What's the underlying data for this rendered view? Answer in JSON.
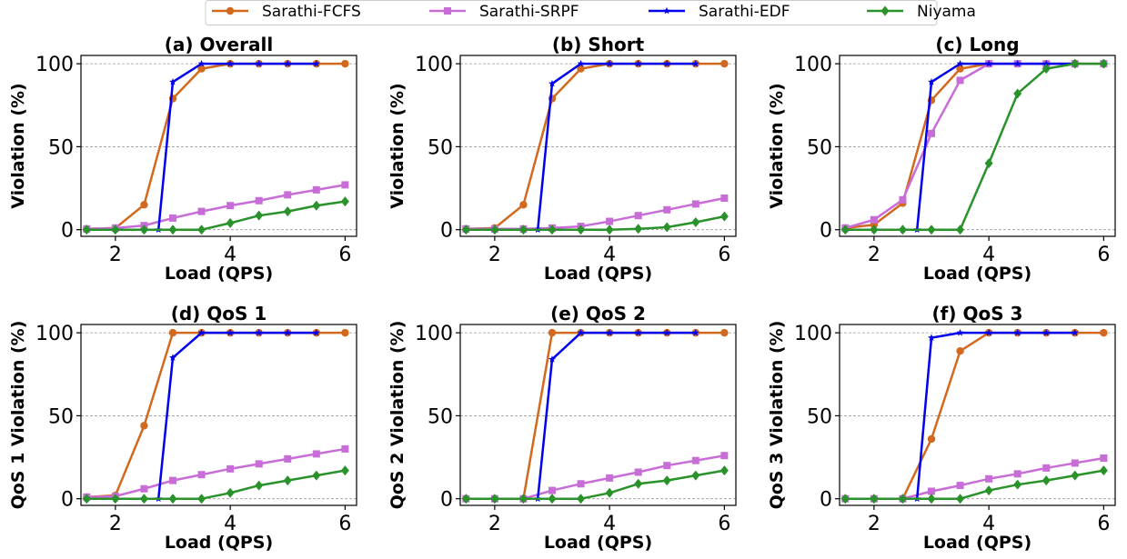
{
  "legend": {
    "items": [
      {
        "name": "Sarathi-FCFS",
        "color": "#d2691e",
        "marker": "circle"
      },
      {
        "name": "Sarathi-SRPF",
        "color": "#c86dd7",
        "marker": "square"
      },
      {
        "name": "Sarathi-EDF",
        "color": "#0000ee",
        "marker": "star"
      },
      {
        "name": "Niyama",
        "color": "#2a922a",
        "marker": "diamond"
      }
    ]
  },
  "chart_data": [
    {
      "type": "line",
      "title": "(a) Overall",
      "xlabel": "Load (QPS)",
      "ylabel": "Violation (%)",
      "xticks": [
        2,
        4,
        6
      ],
      "yticks": [
        0,
        50,
        100
      ],
      "xlim": [
        1.4,
        6.2
      ],
      "ylim": [
        -4,
        105
      ],
      "grid": "horizontal-dashed",
      "series": [
        {
          "name": "Sarathi-FCFS",
          "x": [
            1.5,
            2,
            2.5,
            3,
            3.5,
            4,
            4.5,
            5,
            5.5,
            6
          ],
          "y": [
            0.5,
            1,
            15,
            79,
            97,
            100,
            100,
            100,
            100,
            100
          ]
        },
        {
          "name": "Sarathi-SRPF",
          "x": [
            1.5,
            2,
            2.5,
            3,
            3.5,
            4,
            4.5,
            5,
            5.5,
            6
          ],
          "y": [
            0.5,
            1,
            2.5,
            7,
            11,
            14.5,
            17.5,
            21,
            24,
            27
          ]
        },
        {
          "name": "Sarathi-EDF",
          "x": [
            1.5,
            2,
            2.5,
            2.75,
            3,
            3.5,
            4,
            4.5,
            5,
            5.5
          ],
          "y": [
            0,
            0,
            0,
            0,
            89,
            100,
            100,
            100,
            100,
            100
          ]
        },
        {
          "name": "Niyama",
          "x": [
            1.5,
            2,
            2.5,
            3,
            3.5,
            4,
            4.5,
            5,
            5.5,
            6
          ],
          "y": [
            0,
            0,
            0,
            0,
            0,
            4,
            8.5,
            11,
            14.5,
            17
          ]
        }
      ]
    },
    {
      "type": "line",
      "title": "(b) Short",
      "xlabel": "Load (QPS)",
      "ylabel": "Violation (%)",
      "xticks": [
        2,
        4,
        6
      ],
      "yticks": [
        0,
        50,
        100
      ],
      "xlim": [
        1.4,
        6.2
      ],
      "ylim": [
        -4,
        105
      ],
      "grid": "horizontal-dashed",
      "series": [
        {
          "name": "Sarathi-FCFS",
          "x": [
            1.5,
            2,
            2.5,
            3,
            3.5,
            4,
            4.5,
            5,
            5.5,
            6
          ],
          "y": [
            0.5,
            1,
            15,
            79,
            97,
            100,
            100,
            100,
            100,
            100
          ]
        },
        {
          "name": "Sarathi-SRPF",
          "x": [
            1.5,
            2,
            2.5,
            3,
            3.5,
            4,
            4.5,
            5,
            5.5,
            6
          ],
          "y": [
            0.5,
            0.5,
            0.5,
            1,
            2,
            5,
            8.5,
            12,
            15.5,
            19
          ]
        },
        {
          "name": "Sarathi-EDF",
          "x": [
            1.5,
            2,
            2.5,
            2.75,
            3,
            3.5,
            4,
            4.5,
            5,
            5.5
          ],
          "y": [
            0,
            0,
            0,
            0,
            88,
            100,
            100,
            100,
            100,
            100
          ]
        },
        {
          "name": "Niyama",
          "x": [
            1.5,
            2,
            2.5,
            3,
            3.5,
            4,
            4.5,
            5,
            5.5,
            6
          ],
          "y": [
            0,
            0,
            0,
            0,
            0,
            0,
            0.5,
            1.5,
            4.5,
            8
          ]
        }
      ]
    },
    {
      "type": "line",
      "title": "(c) Long",
      "xlabel": "Load (QPS)",
      "ylabel": "Violation (%)",
      "xticks": [
        2,
        4,
        6
      ],
      "yticks": [
        0,
        50,
        100
      ],
      "xlim": [
        1.4,
        6.2
      ],
      "ylim": [
        -4,
        105
      ],
      "grid": "horizontal-dashed",
      "series": [
        {
          "name": "Sarathi-FCFS",
          "x": [
            1.5,
            2,
            2.5,
            3,
            3.5,
            4,
            4.5,
            5,
            5.5,
            6
          ],
          "y": [
            1,
            3,
            16,
            78,
            97,
            100,
            100,
            100,
            100,
            100
          ]
        },
        {
          "name": "Sarathi-SRPF",
          "x": [
            1.5,
            2,
            2.5,
            3,
            3.5,
            4,
            4.5,
            5,
            5.5,
            6
          ],
          "y": [
            1,
            6,
            18,
            58,
            90,
            100,
            100,
            100,
            100,
            100
          ]
        },
        {
          "name": "Sarathi-EDF",
          "x": [
            1.5,
            2,
            2.5,
            2.75,
            3,
            3.5,
            4,
            4.5,
            5,
            5.5
          ],
          "y": [
            0,
            0,
            0,
            0,
            89,
            100,
            100,
            100,
            100,
            100
          ]
        },
        {
          "name": "Niyama",
          "x": [
            1.5,
            2,
            2.5,
            3,
            3.5,
            4,
            4.5,
            5,
            5.5,
            6
          ],
          "y": [
            0,
            0,
            0,
            0,
            0,
            40,
            82,
            97,
            100,
            100
          ]
        }
      ]
    },
    {
      "type": "line",
      "title": "(d) QoS 1",
      "xlabel": "Load (QPS)",
      "ylabel": "QoS 1 Violation (%)",
      "xticks": [
        2,
        4,
        6
      ],
      "yticks": [
        0,
        50,
        100
      ],
      "xlim": [
        1.4,
        6.2
      ],
      "ylim": [
        -4,
        105
      ],
      "grid": "horizontal-dashed",
      "series": [
        {
          "name": "Sarathi-FCFS",
          "x": [
            1.5,
            2,
            2.5,
            3,
            3.5,
            4,
            4.5,
            5,
            5.5,
            6
          ],
          "y": [
            1,
            2,
            44,
            100,
            100,
            100,
            100,
            100,
            100,
            100
          ]
        },
        {
          "name": "Sarathi-SRPF",
          "x": [
            1.5,
            2,
            2.5,
            3,
            3.5,
            4,
            4.5,
            5,
            5.5,
            6
          ],
          "y": [
            1,
            1.5,
            6,
            11,
            14.5,
            18,
            21,
            24,
            27,
            30
          ]
        },
        {
          "name": "Sarathi-EDF",
          "x": [
            1.5,
            2,
            2.5,
            2.75,
            3,
            3.5,
            4,
            4.5,
            5,
            5.5
          ],
          "y": [
            0,
            0,
            0,
            0,
            85,
            100,
            100,
            100,
            100,
            100
          ]
        },
        {
          "name": "Niyama",
          "x": [
            1.5,
            2,
            2.5,
            3,
            3.5,
            4,
            4.5,
            5,
            5.5,
            6
          ],
          "y": [
            0,
            0,
            0,
            0,
            0,
            3.5,
            8,
            11,
            14,
            17
          ]
        }
      ]
    },
    {
      "type": "line",
      "title": "(e) QoS 2",
      "xlabel": "Load (QPS)",
      "ylabel": "QoS 2 Violation (%)",
      "xticks": [
        2,
        4,
        6
      ],
      "yticks": [
        0,
        50,
        100
      ],
      "xlim": [
        1.4,
        6.2
      ],
      "ylim": [
        -4,
        105
      ],
      "grid": "horizontal-dashed",
      "series": [
        {
          "name": "Sarathi-FCFS",
          "x": [
            1.5,
            2,
            2.5,
            3,
            3.5,
            4,
            4.5,
            5,
            5.5,
            6
          ],
          "y": [
            0,
            0,
            0,
            100,
            100,
            100,
            100,
            100,
            100,
            100
          ]
        },
        {
          "name": "Sarathi-SRPF",
          "x": [
            1.5,
            2,
            2.5,
            3,
            3.5,
            4,
            4.5,
            5,
            5.5,
            6
          ],
          "y": [
            0,
            0,
            0,
            5,
            9,
            12.5,
            16,
            20,
            23,
            26
          ]
        },
        {
          "name": "Sarathi-EDF",
          "x": [
            1.5,
            2,
            2.5,
            2.75,
            3,
            3.5,
            4,
            4.5,
            5,
            5.5
          ],
          "y": [
            0,
            0,
            0,
            0,
            84,
            100,
            100,
            100,
            100,
            100
          ]
        },
        {
          "name": "Niyama",
          "x": [
            1.5,
            2,
            2.5,
            3,
            3.5,
            4,
            4.5,
            5,
            5.5,
            6
          ],
          "y": [
            0,
            0,
            0,
            0,
            0,
            3.5,
            9,
            11,
            14,
            17
          ]
        }
      ]
    },
    {
      "type": "line",
      "title": "(f) QoS 3",
      "xlabel": "Load (QPS)",
      "ylabel": "QoS 3 Violation (%)",
      "xticks": [
        2,
        4,
        6
      ],
      "yticks": [
        0,
        50,
        100
      ],
      "xlim": [
        1.4,
        6.2
      ],
      "ylim": [
        -4,
        105
      ],
      "grid": "horizontal-dashed",
      "series": [
        {
          "name": "Sarathi-FCFS",
          "x": [
            1.5,
            2,
            2.5,
            3,
            3.5,
            4,
            4.5,
            5,
            5.5,
            6
          ],
          "y": [
            0,
            0,
            0,
            36,
            89,
            100,
            100,
            100,
            100,
            100
          ]
        },
        {
          "name": "Sarathi-SRPF",
          "x": [
            1.5,
            2,
            2.5,
            3,
            3.5,
            4,
            4.5,
            5,
            5.5,
            6
          ],
          "y": [
            0,
            0,
            0,
            4.5,
            8,
            12,
            15,
            18.5,
            21.5,
            24.5
          ]
        },
        {
          "name": "Sarathi-EDF",
          "x": [
            1.5,
            2,
            2.5,
            2.75,
            3,
            3.5,
            4,
            4.5,
            5,
            5.5
          ],
          "y": [
            0,
            0,
            0,
            0,
            97,
            100,
            100,
            100,
            100,
            100
          ]
        },
        {
          "name": "Niyama",
          "x": [
            1.5,
            2,
            2.5,
            3,
            3.5,
            4,
            4.5,
            5,
            5.5,
            6
          ],
          "y": [
            0,
            0,
            0,
            0,
            0,
            5,
            8.5,
            11,
            14,
            17
          ]
        }
      ]
    }
  ]
}
